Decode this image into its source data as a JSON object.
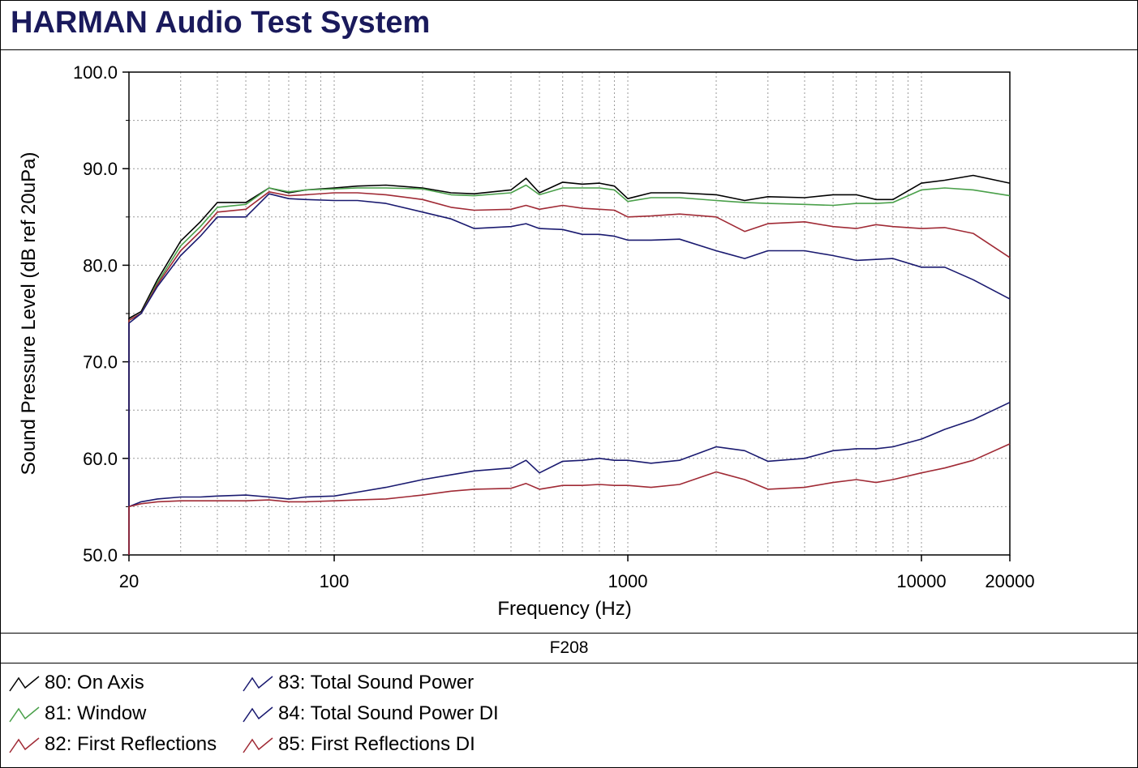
{
  "window": {
    "title": "HARMAN Audio Test System"
  },
  "caption": "F208",
  "chart_data": {
    "type": "line",
    "x_scale": "log",
    "xlabel": "Frequency (Hz)",
    "ylabel": "Sound Pressure Level (dB ref 20uPa)",
    "xlim": [
      20,
      20000
    ],
    "ylim": [
      50,
      100
    ],
    "x_ticks": [
      20,
      100,
      1000,
      10000,
      20000
    ],
    "y_ticks": [
      50,
      60,
      70,
      80,
      90,
      100
    ],
    "y_tick_labels": [
      "50.0",
      "60.0",
      "70.0",
      "80.0",
      "90.0",
      "100.0"
    ],
    "grid": true,
    "legend_position": "bottom",
    "x": [
      20,
      22,
      25,
      30,
      35,
      40,
      50,
      60,
      70,
      80,
      100,
      120,
      150,
      200,
      250,
      300,
      400,
      450,
      500,
      600,
      700,
      800,
      900,
      1000,
      1200,
      1500,
      2000,
      2500,
      3000,
      4000,
      5000,
      6000,
      7000,
      8000,
      10000,
      12000,
      15000,
      20000
    ],
    "series": [
      {
        "name": "80: On Axis",
        "color": "#000000",
        "values": [
          74.5,
          75.2,
          78.5,
          82.5,
          84.5,
          86.5,
          86.5,
          88.0,
          87.5,
          87.8,
          88.0,
          88.2,
          88.3,
          88.0,
          87.5,
          87.4,
          87.8,
          89.0,
          87.5,
          88.6,
          88.4,
          88.5,
          88.2,
          86.9,
          87.5,
          87.5,
          87.3,
          86.7,
          87.1,
          87.0,
          87.3,
          87.3,
          86.8,
          86.8,
          88.5,
          88.8,
          89.3,
          88.5
        ]
      },
      {
        "name": "81: Window",
        "color": "#4aa04a",
        "values": [
          74.3,
          75.0,
          78.2,
          82.0,
          84.0,
          86.0,
          86.3,
          88.0,
          87.6,
          87.8,
          87.9,
          88.0,
          88.0,
          87.9,
          87.3,
          87.2,
          87.5,
          88.3,
          87.3,
          88.0,
          88.0,
          88.0,
          87.8,
          86.6,
          87.0,
          87.0,
          86.7,
          86.5,
          86.4,
          86.3,
          86.2,
          86.4,
          86.4,
          86.5,
          87.8,
          88.0,
          87.8,
          87.2
        ]
      },
      {
        "name": "82: First Reflections",
        "color": "#a02a35",
        "values": [
          74.3,
          75.0,
          78.0,
          81.5,
          83.5,
          85.5,
          85.8,
          87.6,
          87.2,
          87.3,
          87.5,
          87.5,
          87.3,
          86.8,
          86.0,
          85.7,
          85.8,
          86.2,
          85.8,
          86.2,
          85.9,
          85.8,
          85.7,
          85.0,
          85.1,
          85.3,
          85.0,
          83.5,
          84.3,
          84.5,
          84.0,
          83.8,
          84.2,
          84.0,
          83.8,
          83.9,
          83.3,
          80.8
        ]
      },
      {
        "name": "83: Total Sound Power",
        "color": "#1a1a70",
        "values": [
          74.0,
          75.0,
          77.8,
          81.0,
          83.0,
          85.0,
          85.0,
          87.4,
          86.9,
          86.8,
          86.7,
          86.7,
          86.4,
          85.5,
          84.8,
          83.8,
          84.0,
          84.3,
          83.8,
          83.7,
          83.2,
          83.2,
          83.0,
          82.6,
          82.6,
          82.7,
          81.5,
          80.7,
          81.5,
          81.5,
          81.0,
          80.5,
          80.6,
          80.7,
          79.8,
          79.8,
          78.5,
          76.5
        ]
      },
      {
        "name": "84: Total Sound Power DI",
        "color": "#1a1a70",
        "values": [
          55.0,
          55.5,
          55.8,
          56.0,
          56.0,
          56.1,
          56.2,
          56.0,
          55.8,
          56.0,
          56.1,
          56.5,
          57.0,
          57.8,
          58.3,
          58.7,
          59.0,
          59.8,
          58.5,
          59.7,
          59.8,
          60.0,
          59.8,
          59.8,
          59.5,
          59.8,
          61.2,
          60.8,
          59.7,
          60.0,
          60.8,
          61.0,
          61.0,
          61.2,
          62.0,
          63.0,
          64.0,
          65.8
        ]
      },
      {
        "name": "85: First Reflections DI",
        "color": "#a02a35",
        "values": [
          55.0,
          55.3,
          55.5,
          55.6,
          55.6,
          55.6,
          55.6,
          55.7,
          55.5,
          55.5,
          55.6,
          55.7,
          55.8,
          56.2,
          56.6,
          56.8,
          56.9,
          57.4,
          56.8,
          57.2,
          57.2,
          57.3,
          57.2,
          57.2,
          57.0,
          57.3,
          58.6,
          57.8,
          56.8,
          57.0,
          57.5,
          57.8,
          57.5,
          57.8,
          58.5,
          59.0,
          59.8,
          61.5
        ]
      }
    ]
  },
  "legend": {
    "items": [
      "80: On Axis",
      "81: Window",
      "82: First Reflections",
      "83: Total Sound Power",
      "84: Total Sound Power DI",
      "85: First Reflections DI"
    ]
  }
}
